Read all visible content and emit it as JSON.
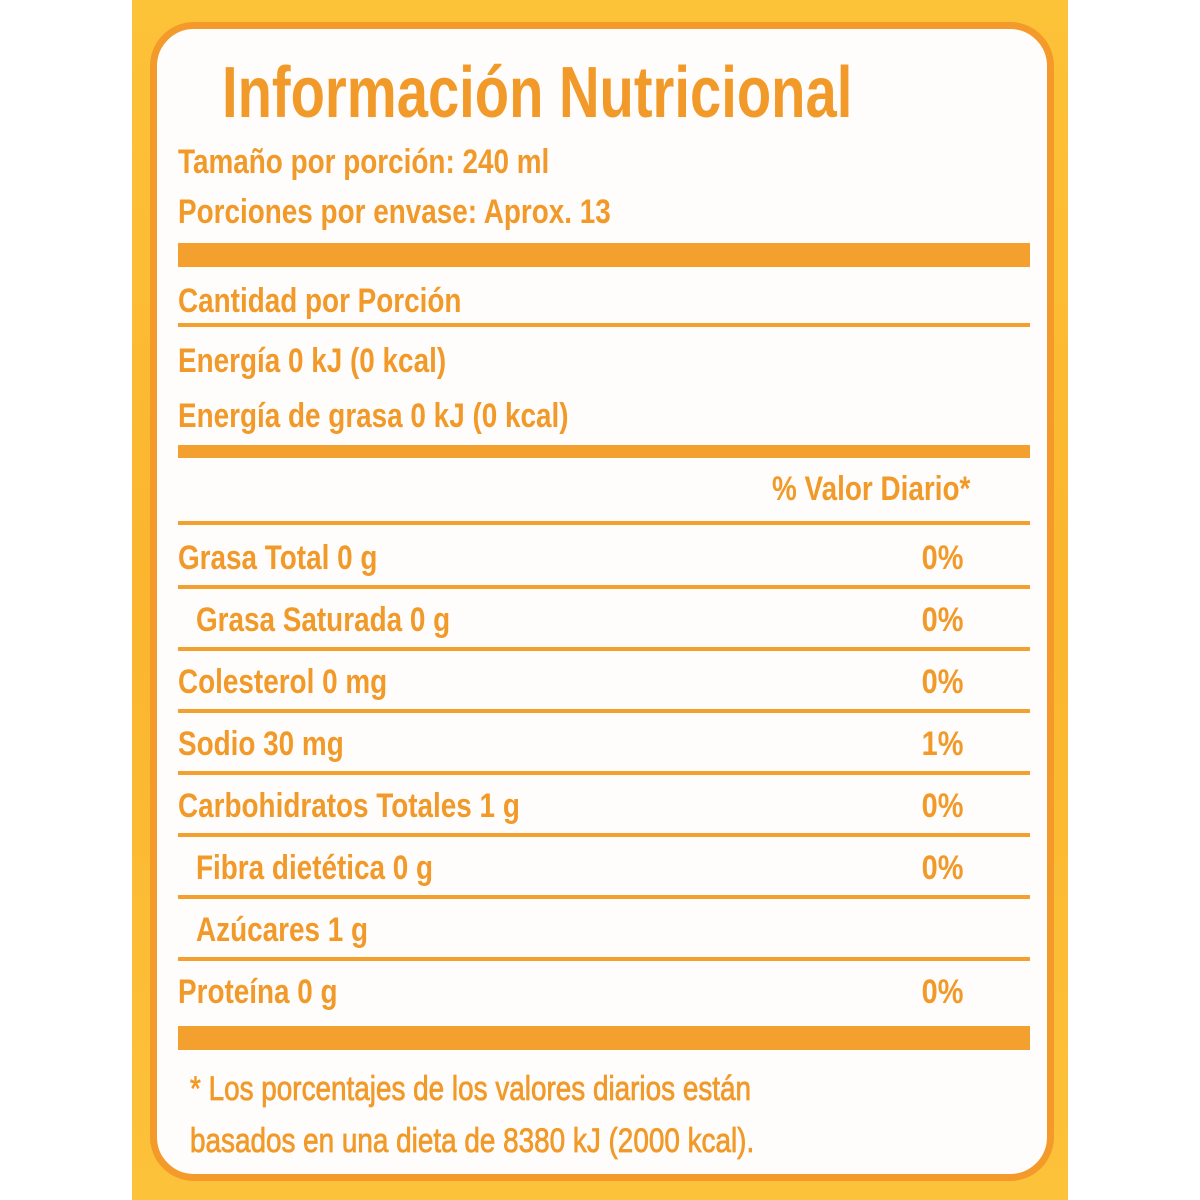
{
  "title": "Información Nutricional",
  "serving_size": "Tamaño por porción: 240 ml",
  "servings_per_container": "Porciones por envase: Aprox. 13",
  "amount_per_serving": "Cantidad por Porción",
  "energy": "Energía 0 kJ (0 kcal)",
  "energy_from_fat": "Energía de grasa 0 kJ (0 kcal)",
  "daily_value_header": "% Valor Diario*",
  "nutrients": [
    {
      "label": "Grasa Total 0 g",
      "dv": "0%",
      "indent": false
    },
    {
      "label": "Grasa Saturada 0 g",
      "dv": "0%",
      "indent": true
    },
    {
      "label": "Colesterol 0 mg",
      "dv": "0%",
      "indent": false
    },
    {
      "label": "Sodio 30 mg",
      "dv": "1%",
      "indent": false
    },
    {
      "label": "Carbohidratos Totales 1 g",
      "dv": "0%",
      "indent": false
    },
    {
      "label": "Fibra dietética 0 g",
      "dv": "0%",
      "indent": true
    },
    {
      "label": "Azúcares 1 g",
      "dv": "",
      "indent": true
    },
    {
      "label": "Proteína 0 g",
      "dv": "0%",
      "indent": false
    }
  ],
  "footnote_line1": "* Los porcentajes de los valores diarios están",
  "footnote_line2": "basados en una dieta de 8380 kJ (2000 kcal).",
  "colors": {
    "text": "#f19a2a",
    "border": "#f39a2a",
    "background": "#fcc238"
  }
}
